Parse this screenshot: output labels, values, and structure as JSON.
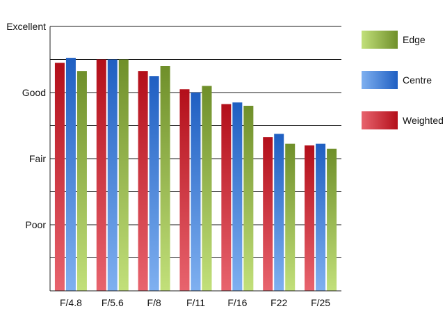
{
  "chart_data": {
    "type": "bar",
    "categories": [
      "F/4.8",
      "F/5.6",
      "F/8",
      "F/11",
      "F/16",
      "F22",
      "F/25"
    ],
    "series": [
      {
        "name": "Weighted",
        "values": [
          6.9,
          7.0,
          6.65,
          6.1,
          5.65,
          4.65,
          4.4
        ],
        "color_top": "#b30f1a",
        "color_bottom": "#e8646e"
      },
      {
        "name": "Centre",
        "values": [
          7.05,
          7.0,
          6.5,
          6.0,
          5.7,
          4.75,
          4.45
        ],
        "color_top": "#1f5fc2",
        "color_bottom": "#7fb0f0"
      },
      {
        "name": "Edge",
        "values": [
          6.65,
          7.0,
          6.8,
          6.2,
          5.6,
          4.45,
          4.3
        ],
        "color_top": "#6f8f2a",
        "color_bottom": "#c2e07a"
      }
    ],
    "y_tick_labels": [
      {
        "value": 2,
        "label": "Poor"
      },
      {
        "value": 4,
        "label": "Fair"
      },
      {
        "value": 6,
        "label": "Good"
      },
      {
        "value": 8,
        "label": "Excellent"
      }
    ],
    "ylim": [
      0,
      8
    ],
    "grid": true,
    "legend_position": "right",
    "legend_order": [
      "Edge",
      "Centre",
      "Weighted"
    ]
  }
}
